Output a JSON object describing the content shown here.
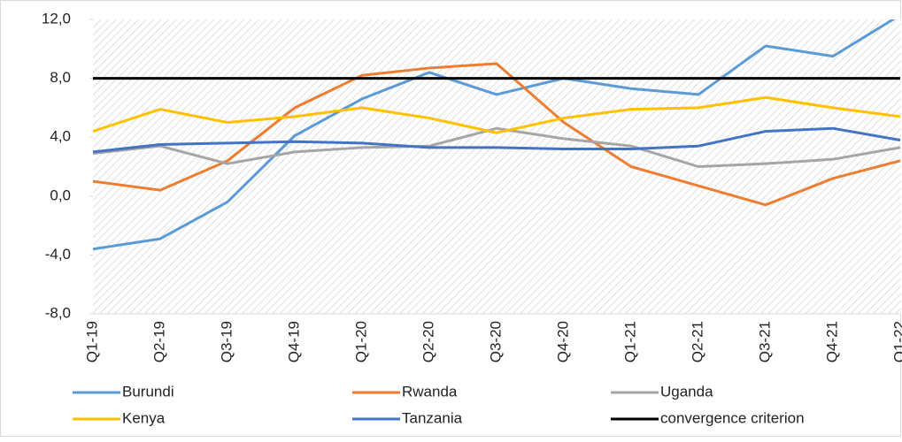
{
  "chart_data": {
    "type": "line",
    "categories": [
      "Q1-19",
      "Q2-19",
      "Q3-19",
      "Q4-19",
      "Q1-20",
      "Q2-20",
      "Q3-20",
      "Q4-20",
      "Q1-21",
      "Q2-21",
      "Q3-21",
      "Q4-21",
      "Q1-22"
    ],
    "series": [
      {
        "name": "Burundi",
        "color": "#5b9bd5",
        "values": [
          -3.6,
          -2.9,
          -0.4,
          4.1,
          6.6,
          8.4,
          6.9,
          8.0,
          7.3,
          6.9,
          10.2,
          9.5,
          12.3
        ]
      },
      {
        "name": "Rwanda",
        "color": "#ed7d31",
        "values": [
          1.0,
          0.4,
          2.4,
          6.0,
          8.2,
          8.7,
          9.0,
          5.0,
          2.0,
          0.7,
          -0.6,
          1.2,
          2.4
        ]
      },
      {
        "name": "Uganda",
        "color": "#a5a5a5",
        "values": [
          2.9,
          3.4,
          2.2,
          3.0,
          3.3,
          3.4,
          4.6,
          3.9,
          3.4,
          2.0,
          2.2,
          2.5,
          3.3
        ]
      },
      {
        "name": "Kenya",
        "color": "#ffc000",
        "values": [
          4.4,
          5.9,
          5.0,
          5.4,
          6.0,
          5.3,
          4.3,
          5.3,
          5.9,
          6.0,
          6.7,
          6.0,
          5.4
        ]
      },
      {
        "name": "Tanzania",
        "color": "#4472c4",
        "values": [
          3.0,
          3.5,
          3.6,
          3.7,
          3.6,
          3.3,
          3.3,
          3.2,
          3.2,
          3.4,
          4.4,
          4.6,
          3.8
        ]
      },
      {
        "name": "convergence criterion",
        "color": "#000000",
        "values": [
          8,
          8,
          8,
          8,
          8,
          8,
          8,
          8,
          8,
          8,
          8,
          8,
          8
        ]
      }
    ],
    "ylim": [
      -8,
      12
    ],
    "yticks": [
      {
        "value": -8,
        "label": "-8,0"
      },
      {
        "value": -4,
        "label": "-4,0"
      },
      {
        "value": 0,
        "label": "0,0"
      },
      {
        "value": 4,
        "label": "4,0"
      },
      {
        "value": 8,
        "label": "8,0"
      },
      {
        "value": 12,
        "label": "12,0"
      }
    ],
    "grid": false
  }
}
